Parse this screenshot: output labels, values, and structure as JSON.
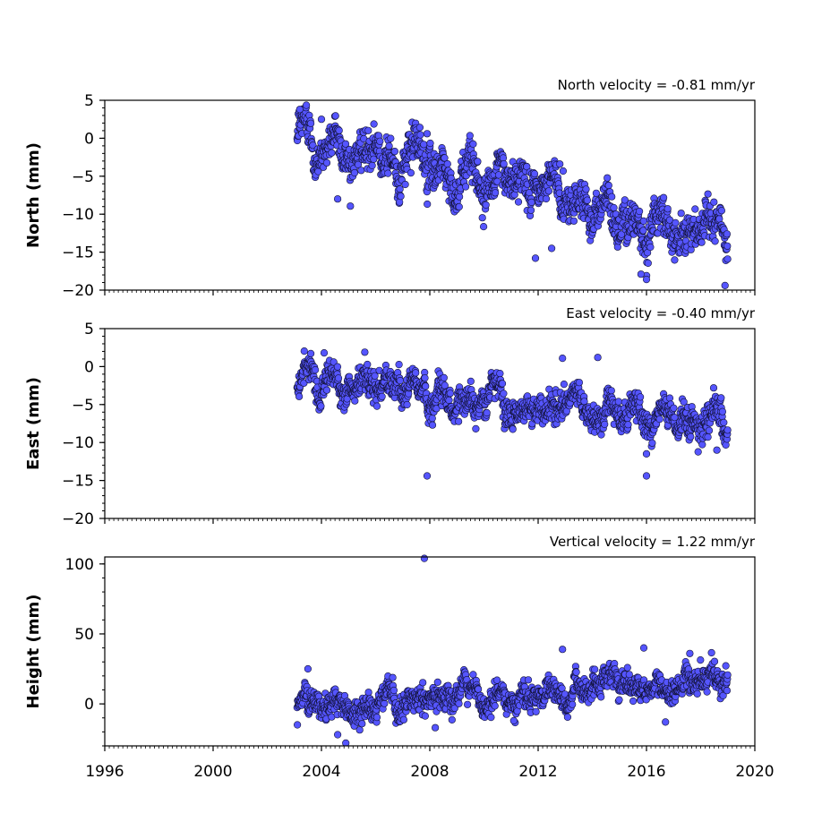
{
  "chart_data": [
    {
      "type": "scatter",
      "ylabel": "North (mm)",
      "annotation": "North velocity = -0.81 mm/yr",
      "xlim": [
        1996,
        2020
      ],
      "ylim": [
        -20,
        5
      ],
      "yticks": [
        5,
        0,
        -5,
        -10,
        -15,
        -20
      ],
      "ytick_labels": [
        "5",
        "0",
        "−5",
        "−10",
        "−15",
        "−20"
      ],
      "time_span": [
        2003.1,
        2019.0
      ],
      "trend": {
        "start": 0.5,
        "slope": -0.81
      },
      "noise_sd": 1.6,
      "seasonal_amp": 1.4,
      "marker_color": "#5555ff",
      "points": [
        {
          "x": 2003.2,
          "y": 3.8
        },
        {
          "x": 2004.0,
          "y": 2.5
        },
        {
          "x": 2004.6,
          "y": -8.0
        },
        {
          "x": 2007.9,
          "y": 0.6
        },
        {
          "x": 2011.9,
          "y": -15.8
        },
        {
          "x": 2012.5,
          "y": -14.5
        },
        {
          "x": 2012.8,
          "y": -3.4
        },
        {
          "x": 2016.0,
          "y": -18.6
        },
        {
          "x": 2018.9,
          "y": -19.4
        },
        {
          "x": 2015.8,
          "y": -17.9
        }
      ]
    },
    {
      "type": "scatter",
      "ylabel": "East (mm)",
      "annotation": "East velocity = -0.40 mm/yr",
      "xlim": [
        1996,
        2020
      ],
      "ylim": [
        -20,
        5
      ],
      "yticks": [
        5,
        0,
        -5,
        -10,
        -15,
        -20
      ],
      "ytick_labels": [
        "5",
        "0",
        "−5",
        "−10",
        "−15",
        "−20"
      ],
      "time_span": [
        2003.1,
        2019.0
      ],
      "trend": {
        "start": -1.5,
        "slope": -0.4
      },
      "noise_sd": 1.2,
      "seasonal_amp": 0.9,
      "marker_color": "#5555ff",
      "points": [
        {
          "x": 2007.9,
          "y": -14.4
        },
        {
          "x": 2016.0,
          "y": -14.4
        },
        {
          "x": 2005.6,
          "y": 1.9
        },
        {
          "x": 2004.1,
          "y": 1.8
        },
        {
          "x": 2014.2,
          "y": 1.2
        },
        {
          "x": 2008.1,
          "y": -7.7
        },
        {
          "x": 2009.7,
          "y": -8.2
        },
        {
          "x": 2016.0,
          "y": -11.5
        },
        {
          "x": 2018.6,
          "y": -11.0
        },
        {
          "x": 2012.9,
          "y": 1.1
        }
      ]
    },
    {
      "type": "scatter",
      "ylabel": "Height (mm)",
      "annotation": "Vertical velocity = 1.22 mm/yr",
      "xlim": [
        1996,
        2020
      ],
      "ylim": [
        -30,
        105
      ],
      "yticks": [
        100,
        50,
        0
      ],
      "ytick_labels": [
        "100",
        "50",
        "0"
      ],
      "xticks": [
        1996,
        2000,
        2004,
        2008,
        2012,
        2016,
        2020
      ],
      "xtick_labels": [
        "1996",
        "2000",
        "2004",
        "2008",
        "2012",
        "2016",
        "2020"
      ],
      "time_span": [
        2003.1,
        2019.0
      ],
      "trend": {
        "start": -2.0,
        "slope": 1.22
      },
      "noise_sd": 5.5,
      "seasonal_amp": 4.0,
      "marker_color": "#5555ff",
      "points": [
        {
          "x": 2007.8,
          "y": 104
        },
        {
          "x": 2004.9,
          "y": -28
        },
        {
          "x": 2003.5,
          "y": 25
        },
        {
          "x": 2012.9,
          "y": 39
        },
        {
          "x": 2015.9,
          "y": 40
        },
        {
          "x": 2017.6,
          "y": 36
        },
        {
          "x": 2008.2,
          "y": -17
        },
        {
          "x": 2011.1,
          "y": -12
        },
        {
          "x": 2016.7,
          "y": -13
        },
        {
          "x": 2004.6,
          "y": -22
        }
      ]
    }
  ]
}
